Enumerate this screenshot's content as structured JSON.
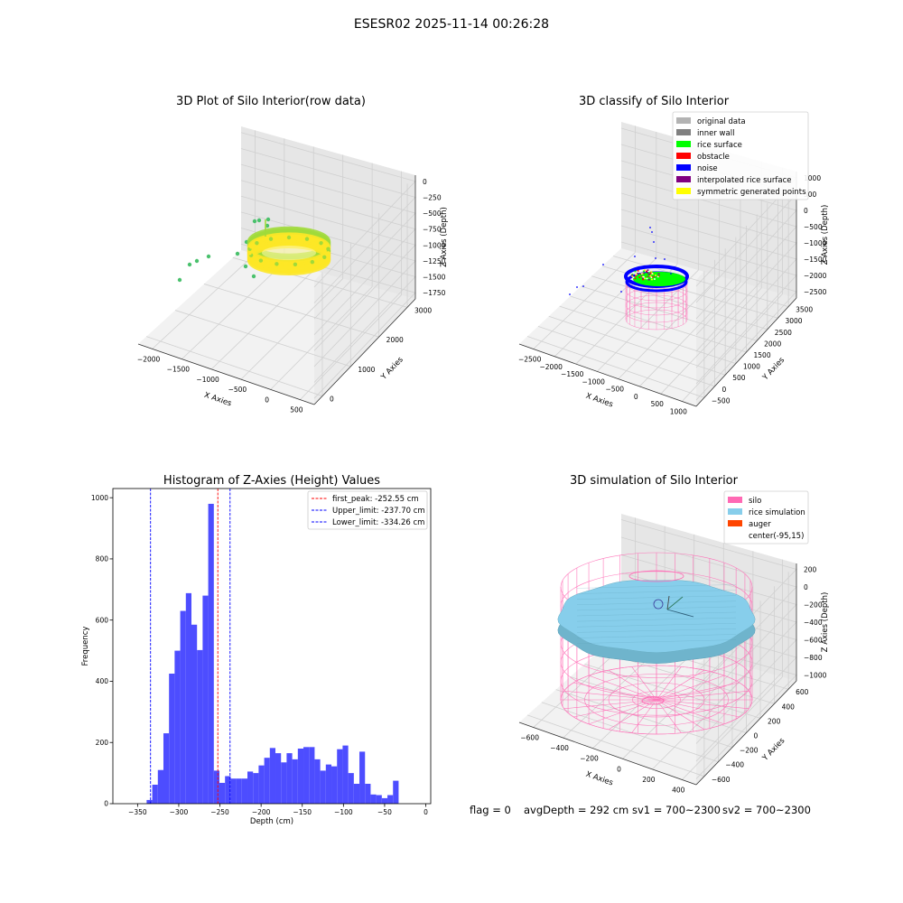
{
  "figure": {
    "suptitle": "ESESR02 2025-11-14 00:26:28",
    "footer": {
      "flag": "flag = 0",
      "avg_depth": "avgDepth = 292 cm",
      "sv1": "sv1 = 700~2300",
      "sv2": "sv2 = 700~2300"
    }
  },
  "chart_data": [
    {
      "type": "scatter",
      "projection": "3d",
      "title": "3D Plot of Silo Interior(row data)",
      "xlabel": "X Axies",
      "ylabel": "Y Axies",
      "zlabel": "Z Axies (Depth)",
      "x_ticks": [
        "−2000",
        "−1500",
        "−1000",
        "−500",
        "0",
        "500"
      ],
      "y_ticks": [
        "0",
        "1000",
        "2000",
        "3000"
      ],
      "z_ticks": [
        "0",
        "−250",
        "−500",
        "−750",
        "−1000",
        "−1250",
        "−1500",
        "−1750"
      ],
      "colormap": "viridis",
      "colors": {
        "high": "#fde725",
        "mid": "#a0da39",
        "low": "#4ac16d"
      }
    },
    {
      "type": "scatter",
      "projection": "3d",
      "title": "3D classify of Silo Interior",
      "xlabel": "X Axies",
      "ylabel": "Y Axies",
      "zlabel": "Z Axies (Depth)",
      "x_ticks": [
        "−2500",
        "−2000",
        "−1500",
        "−1000",
        "−500",
        "0",
        "500",
        "1000"
      ],
      "y_ticks": [
        "−500",
        "0",
        "500",
        "1000",
        "1500",
        "2000",
        "2500",
        "3000",
        "3500"
      ],
      "z_ticks": [
        "1000",
        "500",
        "0",
        "−500",
        "−1000",
        "−1500",
        "−2000",
        "−2500"
      ],
      "legend_position": "upper-right",
      "legend": [
        {
          "name": "original data",
          "color": "#b3b3b3"
        },
        {
          "name": "inner wall",
          "color": "#808080"
        },
        {
          "name": "rice surface",
          "color": "#00ff00"
        },
        {
          "name": "obstacle",
          "color": "#ff0000"
        },
        {
          "name": "noise",
          "color": "#0000ff"
        },
        {
          "name": "interpolated rice surface",
          "color": "#800080"
        },
        {
          "name": "symmetric generated points",
          "color": "#ffff00"
        }
      ],
      "wall_color": "#ff69b4"
    },
    {
      "type": "bar",
      "title": "Histogram of Z-Axies (Height) Values",
      "xlabel": "Depth (cm)",
      "ylabel": "Frequency",
      "xlim": [
        -380,
        6
      ],
      "ylim": [
        0,
        1030
      ],
      "x_ticks": [
        -350,
        -300,
        -250,
        -200,
        -150,
        -100,
        -50,
        0
      ],
      "x_tick_labels": [
        "−350",
        "−300",
        "−250",
        "−200",
        "−150",
        "−100",
        "−50",
        "0"
      ],
      "y_ticks": [
        0,
        200,
        400,
        600,
        800,
        1000
      ],
      "bar_color": "#4d4dff",
      "bin_width": 6.8,
      "bin_starts": [
        -339,
        -332.2,
        -325.4,
        -318.6,
        -311.8,
        -305,
        -298.2,
        -291.4,
        -284.6,
        -277.8,
        -271,
        -264.2,
        -257.4,
        -250.6,
        -243.8,
        -237,
        -230.2,
        -223.4,
        -216.6,
        -209.8,
        -203,
        -196.2,
        -189.4,
        -182.6,
        -175.8,
        -169,
        -162.2,
        -155.4,
        -148.6,
        -141.8,
        -135,
        -128.2,
        -121.4,
        -114.6,
        -107.8,
        -101,
        -94.2,
        -87.4,
        -80.6,
        -73.8,
        -67,
        -60.2,
        -53.4,
        -46.6,
        -39.8,
        -33,
        -26.2,
        -19.4,
        -12.6,
        -5.8
      ],
      "values": [
        12,
        62,
        110,
        230,
        425,
        500,
        630,
        688,
        585,
        502,
        680,
        980,
        108,
        68,
        90,
        82,
        82,
        82,
        105,
        100,
        125,
        150,
        182,
        165,
        135,
        165,
        145,
        180,
        185,
        185,
        145,
        108,
        128,
        122,
        178,
        190,
        100,
        65,
        170,
        65,
        30,
        28,
        18,
        28,
        75,
        0,
        0,
        0,
        0,
        0
      ],
      "reference_lines": [
        {
          "name": "first_peak: -252.55 cm",
          "x": -252.55,
          "color": "#ff0000"
        },
        {
          "name": "Upper_limit: -237.70 cm",
          "x": -237.7,
          "color": "#0000ff"
        },
        {
          "name": "Lower_limit: -334.26 cm",
          "x": -334.26,
          "color": "#0000ff"
        }
      ],
      "legend_position": "upper-right"
    },
    {
      "type": "surface",
      "projection": "3d",
      "title": "3D simulation of Silo Interior",
      "xlabel": "X Axies",
      "ylabel": "Y Axies",
      "zlabel": "Z Axies (Depth)",
      "x_ticks": [
        "−600",
        "−400",
        "−200",
        "0",
        "200",
        "400"
      ],
      "y_ticks": [
        "−600",
        "−400",
        "−200",
        "0",
        "200",
        "400",
        "600"
      ],
      "z_ticks": [
        "200",
        "0",
        "−200",
        "−400",
        "−600",
        "−800",
        "−1000"
      ],
      "legend_position": "upper-right",
      "legend": [
        {
          "name": "silo",
          "color": "#ff69b4"
        },
        {
          "name": "rice simulation",
          "color": "#87ceeb"
        },
        {
          "name": "auger",
          "color": "#ff4500"
        },
        {
          "name": "center(-95,15)",
          "color": ""
        }
      ]
    }
  ]
}
